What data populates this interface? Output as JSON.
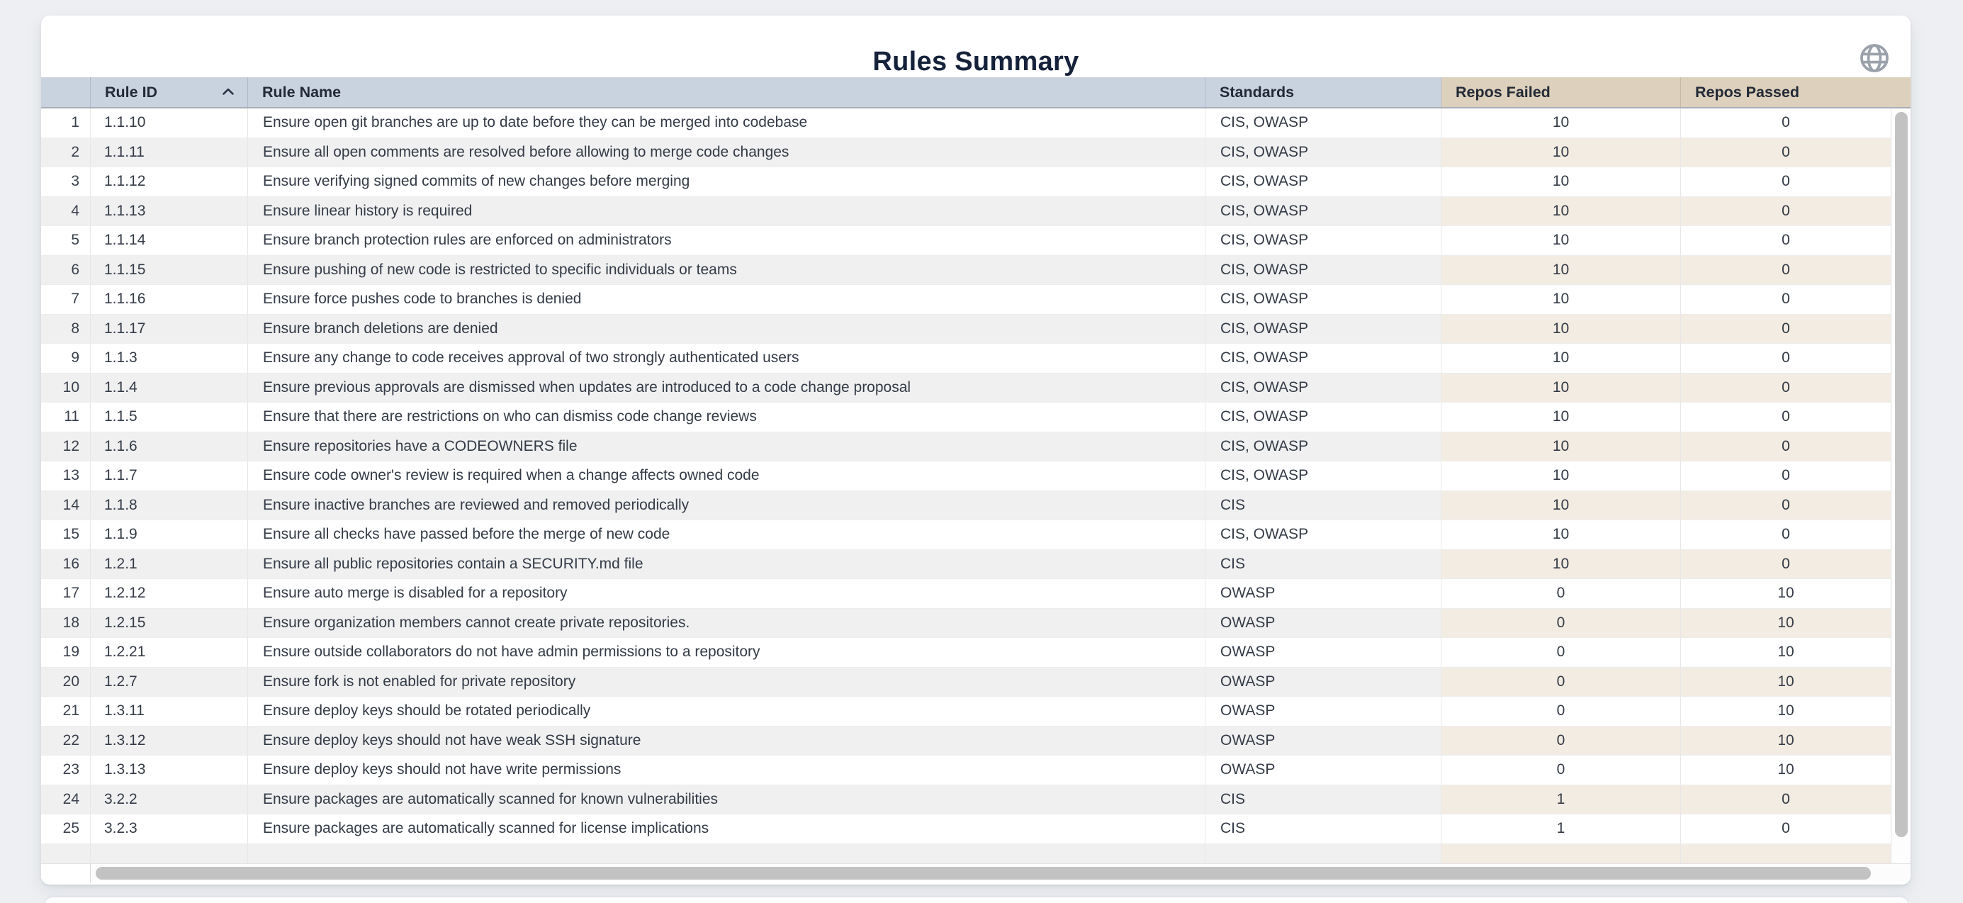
{
  "card": {
    "title": "Rules Summary"
  },
  "toolbar": {
    "globe_icon": "globe-icon"
  },
  "colors": {
    "page_bg": "#edeff2",
    "header_cool": "#c9d3e0",
    "header_warm": "#ddd0bc",
    "stripe_cool": "#f0f0f1",
    "stripe_warm": "#f3ece2",
    "title_text": "#15223a",
    "cell_text": "#343b46",
    "scrollbar_thumb": "#c2c2c2"
  },
  "table": {
    "columns": [
      {
        "key": "num",
        "label": ""
      },
      {
        "key": "id",
        "label": "Rule ID",
        "sort": "ascending"
      },
      {
        "key": "name",
        "label": "Rule Name"
      },
      {
        "key": "standards",
        "label": "Standards"
      },
      {
        "key": "failed",
        "label": "Repos Failed"
      },
      {
        "key": "passed",
        "label": "Repos Passed"
      }
    ],
    "rows": [
      {
        "num": 1,
        "id": "1.1.10",
        "name": "Ensure open git branches are up to date before they can be merged into codebase",
        "standards": "CIS, OWASP",
        "failed": 10,
        "passed": 0
      },
      {
        "num": 2,
        "id": "1.1.11",
        "name": "Ensure all open comments are resolved before allowing to merge code changes",
        "standards": "CIS, OWASP",
        "failed": 10,
        "passed": 0
      },
      {
        "num": 3,
        "id": "1.1.12",
        "name": "Ensure verifying signed commits of new changes before merging",
        "standards": "CIS, OWASP",
        "failed": 10,
        "passed": 0
      },
      {
        "num": 4,
        "id": "1.1.13",
        "name": "Ensure linear history is required",
        "standards": "CIS, OWASP",
        "failed": 10,
        "passed": 0
      },
      {
        "num": 5,
        "id": "1.1.14",
        "name": "Ensure branch protection rules are enforced on administrators",
        "standards": "CIS, OWASP",
        "failed": 10,
        "passed": 0
      },
      {
        "num": 6,
        "id": "1.1.15",
        "name": "Ensure pushing of new code is restricted to specific individuals or teams",
        "standards": "CIS, OWASP",
        "failed": 10,
        "passed": 0
      },
      {
        "num": 7,
        "id": "1.1.16",
        "name": "Ensure force pushes code to branches is denied",
        "standards": "CIS, OWASP",
        "failed": 10,
        "passed": 0
      },
      {
        "num": 8,
        "id": "1.1.17",
        "name": "Ensure branch deletions are denied",
        "standards": "CIS, OWASP",
        "failed": 10,
        "passed": 0
      },
      {
        "num": 9,
        "id": "1.1.3",
        "name": "Ensure any change to code receives approval of two strongly authenticated users",
        "standards": "CIS, OWASP",
        "failed": 10,
        "passed": 0
      },
      {
        "num": 10,
        "id": "1.1.4",
        "name": "Ensure previous approvals are dismissed when updates are introduced to a code change proposal",
        "standards": "CIS, OWASP",
        "failed": 10,
        "passed": 0
      },
      {
        "num": 11,
        "id": "1.1.5",
        "name": "Ensure that there are restrictions on who can dismiss code change reviews",
        "standards": "CIS, OWASP",
        "failed": 10,
        "passed": 0
      },
      {
        "num": 12,
        "id": "1.1.6",
        "name": "Ensure repositories have a CODEOWNERS file",
        "standards": "CIS, OWASP",
        "failed": 10,
        "passed": 0
      },
      {
        "num": 13,
        "id": "1.1.7",
        "name": "Ensure code owner's review is required when a change affects owned code",
        "standards": "CIS, OWASP",
        "failed": 10,
        "passed": 0
      },
      {
        "num": 14,
        "id": "1.1.8",
        "name": "Ensure inactive branches are reviewed and removed periodically",
        "standards": "CIS",
        "failed": 10,
        "passed": 0
      },
      {
        "num": 15,
        "id": "1.1.9",
        "name": "Ensure all checks have passed before the merge of new code",
        "standards": "CIS, OWASP",
        "failed": 10,
        "passed": 0
      },
      {
        "num": 16,
        "id": "1.2.1",
        "name": "Ensure all public repositories contain a SECURITY.md file",
        "standards": "CIS",
        "failed": 10,
        "passed": 0
      },
      {
        "num": 17,
        "id": "1.2.12",
        "name": "Ensure auto merge is disabled for a repository",
        "standards": "OWASP",
        "failed": 0,
        "passed": 10
      },
      {
        "num": 18,
        "id": "1.2.15",
        "name": "Ensure organization members cannot create private repositories.",
        "standards": "OWASP",
        "failed": 0,
        "passed": 10
      },
      {
        "num": 19,
        "id": "1.2.21",
        "name": "Ensure outside collaborators do not have admin permissions to a repository",
        "standards": "OWASP",
        "failed": 0,
        "passed": 10
      },
      {
        "num": 20,
        "id": "1.2.7",
        "name": "Ensure fork is not enabled for private repository",
        "standards": "OWASP",
        "failed": 0,
        "passed": 10
      },
      {
        "num": 21,
        "id": "1.3.11",
        "name": "Ensure deploy keys should be rotated periodically",
        "standards": "OWASP",
        "failed": 0,
        "passed": 10
      },
      {
        "num": 22,
        "id": "1.3.12",
        "name": "Ensure deploy keys should not have weak SSH signature",
        "standards": "OWASP",
        "failed": 0,
        "passed": 10
      },
      {
        "num": 23,
        "id": "1.3.13",
        "name": "Ensure deploy keys should not have write permissions",
        "standards": "OWASP",
        "failed": 0,
        "passed": 10
      },
      {
        "num": 24,
        "id": "3.2.2",
        "name": "Ensure packages are automatically scanned for known vulnerabilities",
        "standards": "CIS",
        "failed": 1,
        "passed": 0
      },
      {
        "num": 25,
        "id": "3.2.3",
        "name": "Ensure packages are automatically scanned for license implications",
        "standards": "CIS",
        "failed": 1,
        "passed": 0
      }
    ]
  }
}
